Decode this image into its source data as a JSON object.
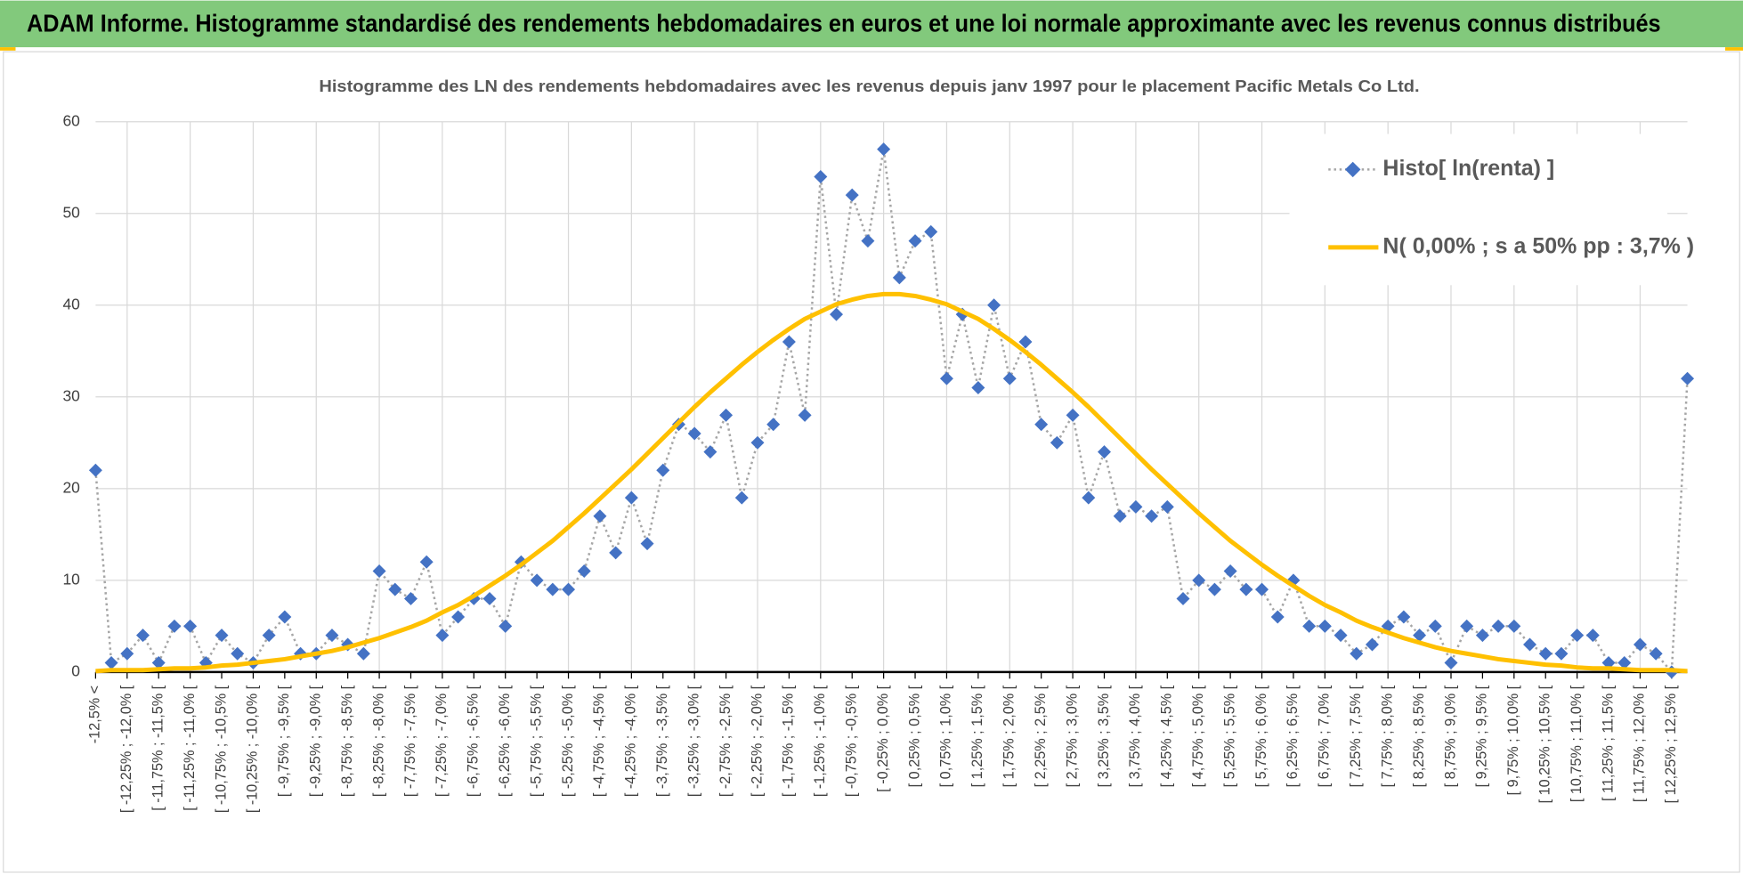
{
  "header": {
    "title": "ADAM Informe. Histogramme standardisé des rendements hebdomadaires en euros et une loi normale approximante avec les revenus connus distribués"
  },
  "chart_data": {
    "type": "line",
    "title": "Histogramme des LN des rendements hebdomadaires avec les revenus depuis janv 1997 pour le placement Pacific Metals Co Ltd.",
    "categories": [
      "-12,5% <",
      null,
      "[ -12,25% ; -12,0% [",
      null,
      "[ -11,75% ; -11,5% [",
      null,
      "[ -11,25% ; -11,0% [",
      null,
      "[ -10,75% ; -10,5% [",
      null,
      "[ -10,25% ; -10,0% [",
      null,
      "[ -9,75% ; -9,5% [",
      null,
      "[ -9,25% ; -9,0% [",
      null,
      "[ -8,75% ; -8,5% [",
      null,
      "[ -8,25% ; -8,0% [",
      null,
      "[ -7,75% ; -7,5% [",
      null,
      "[ -7,25% ; -7,0% [",
      null,
      "[ -6,75% ; -6,5% [",
      null,
      "[ -6,25% ; -6,0% [",
      null,
      "[ -5,75% ; -5,5% [",
      null,
      "[ -5,25% ; -5,0% [",
      null,
      "[ -4,75% ; -4,5% [",
      null,
      "[ -4,25% ; -4,0% [",
      null,
      "[ -3,75% ; -3,5% [",
      null,
      "[ -3,25% ; -3,0% [",
      null,
      "[ -2,75% ; -2,5% [",
      null,
      "[ -2,25% ; -2,0% [",
      null,
      "[ -1,75% ; -1,5% [",
      null,
      "[ -1,25% ; -1,0% [",
      null,
      "[ -0,75% ; -0,5% [",
      null,
      "[ -0,25% ; 0,0% [",
      null,
      "[ 0,25% ; 0,5% [",
      null,
      "[ 0,75% ; 1,0% [",
      null,
      "[ 1,25% ; 1,5% [",
      null,
      "[ 1,75% ; 2,0% [",
      null,
      "[ 2,25% ; 2,5% [",
      null,
      "[ 2,75% ; 3,0% [",
      null,
      "[ 3,25% ; 3,5% [",
      null,
      "[ 3,75% ; 4,0% [",
      null,
      "[ 4,25% ; 4,5% [",
      null,
      "[ 4,75% ; 5,0% [",
      null,
      "[ 5,25% ; 5,5% [",
      null,
      "[ 5,75% ; 6,0% [",
      null,
      "[ 6,25% ; 6,5% [",
      null,
      "[ 6,75% ; 7,0% [",
      null,
      "[ 7,25% ; 7,5% [",
      null,
      "[ 7,75% ; 8,0% [",
      null,
      "[ 8,25% ; 8,5% [",
      null,
      "[ 8,75% ; 9,0% [",
      null,
      "[ 9,25% ; 9,5% [",
      null,
      "[ 9,75% ; 10,0% [",
      null,
      "[ 10,25% ; 10,5% [",
      null,
      "[ 10,75% ; 11,0% [",
      null,
      "[ 11,25% ; 11,5% [",
      null,
      "[ 11,75% ; 12,0% [",
      null,
      "[ 12,25% ; 12,5% [",
      null
    ],
    "series": [
      {
        "name": "Histo[ ln(renta) ]",
        "color": "#4472c4",
        "line_color": "#a6a6a6",
        "marker": "diamond",
        "line_style": "dotted",
        "values": [
          22,
          1,
          2,
          4,
          1,
          5,
          5,
          1,
          4,
          2,
          1,
          4,
          6,
          2,
          2,
          4,
          3,
          2,
          11,
          9,
          8,
          12,
          4,
          6,
          8,
          8,
          5,
          12,
          10,
          9,
          9,
          11,
          17,
          13,
          19,
          14,
          22,
          27,
          26,
          24,
          28,
          19,
          25,
          27,
          36,
          28,
          54,
          39,
          52,
          47,
          57,
          43,
          47,
          48,
          32,
          39,
          31,
          40,
          32,
          36,
          27,
          25,
          28,
          19,
          24,
          17,
          18,
          17,
          18,
          8,
          10,
          9,
          11,
          9,
          9,
          6,
          10,
          5,
          5,
          4,
          2,
          3,
          5,
          6,
          4,
          5,
          1,
          5,
          4,
          5,
          5,
          3,
          2,
          2,
          4,
          4,
          1,
          1,
          3,
          2,
          0,
          32
        ]
      },
      {
        "name": "N( 0,00% ; s a 50% pp : 3,7% )",
        "color": "#ffc000",
        "line_style": "solid",
        "values": [
          0.1,
          0.2,
          0.2,
          0.2,
          0.3,
          0.4,
          0.4,
          0.5,
          0.7,
          0.8,
          1.0,
          1.2,
          1.4,
          1.7,
          2.0,
          2.3,
          2.7,
          3.2,
          3.7,
          4.3,
          4.9,
          5.6,
          6.5,
          7.3,
          8.3,
          9.4,
          10.5,
          11.7,
          13.0,
          14.3,
          15.8,
          17.3,
          18.9,
          20.5,
          22.1,
          23.8,
          25.5,
          27.2,
          28.9,
          30.5,
          32.0,
          33.5,
          34.9,
          36.2,
          37.4,
          38.5,
          39.3,
          40.1,
          40.6,
          41.0,
          41.2,
          41.2,
          41.0,
          40.6,
          40.1,
          39.3,
          38.5,
          37.4,
          36.2,
          34.9,
          33.5,
          32.0,
          30.5,
          28.9,
          27.2,
          25.5,
          23.8,
          22.1,
          20.5,
          18.9,
          17.3,
          15.8,
          14.3,
          13.0,
          11.7,
          10.5,
          9.4,
          8.3,
          7.3,
          6.5,
          5.6,
          4.9,
          4.3,
          3.7,
          3.2,
          2.7,
          2.3,
          2.0,
          1.7,
          1.4,
          1.2,
          1.0,
          0.8,
          0.7,
          0.5,
          0.4,
          0.4,
          0.3,
          0.2,
          0.2,
          0.2,
          0.1
        ]
      }
    ],
    "ylim": [
      0,
      60
    ],
    "yticks": [
      0,
      10,
      20,
      30,
      40,
      50,
      60
    ],
    "grid": true,
    "legend": "upper right"
  }
}
